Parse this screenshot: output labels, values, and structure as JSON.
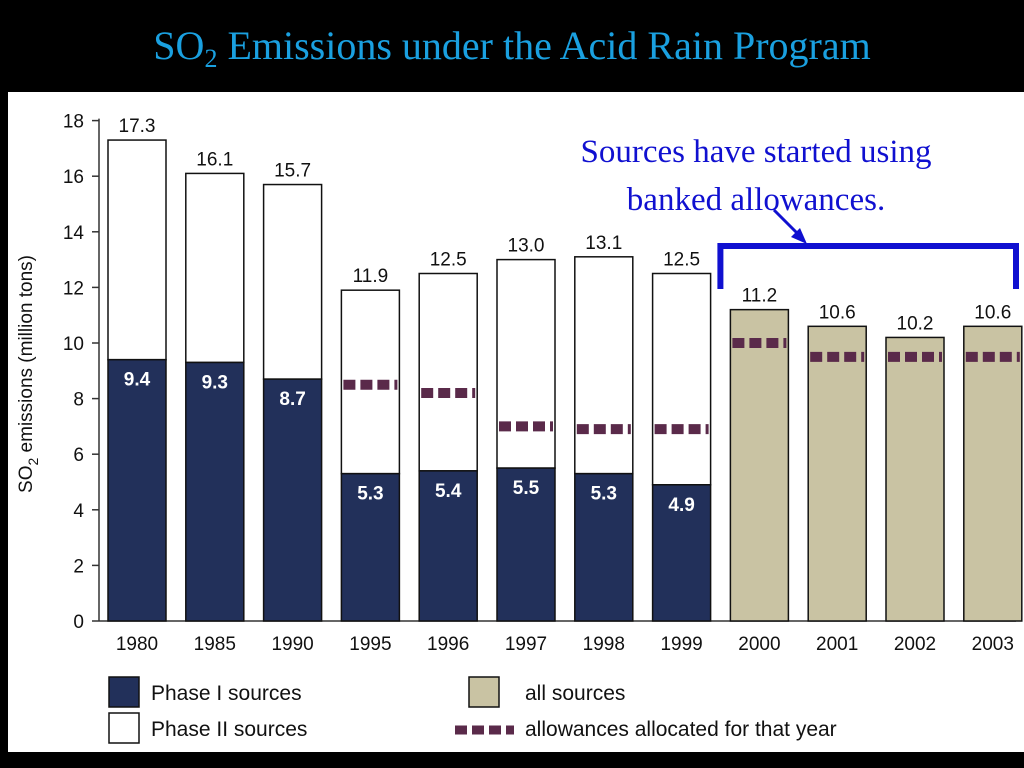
{
  "slide": {
    "title_main": "SO",
    "title_sub": "2",
    "title_rest": " Emissions under the Acid Rain Program"
  },
  "chart_data": {
    "type": "bar",
    "title": "SO2 Emissions under the Acid Rain Program",
    "ylabel_main": "SO",
    "ylabel_sub": "2",
    "ylabel_rest": " emissions (million tons)",
    "ylim": [
      0,
      18
    ],
    "yticks": [
      0,
      2,
      4,
      6,
      8,
      10,
      12,
      14,
      16,
      18
    ],
    "categories": [
      "1980",
      "1985",
      "1990",
      "1995",
      "1996",
      "1997",
      "1998",
      "1999",
      "2000",
      "2001",
      "2002",
      "2003"
    ],
    "totals": [
      17.3,
      16.1,
      15.7,
      11.9,
      12.5,
      13.0,
      13.1,
      12.5,
      11.2,
      10.6,
      10.2,
      10.6
    ],
    "total_labels": [
      "17.3",
      "16.1",
      "15.7",
      "11.9",
      "12.5",
      "13.0",
      "13.1",
      "12.5",
      "11.2",
      "10.6",
      "10.2",
      "10.6"
    ],
    "series": [
      {
        "name": "Phase I sources",
        "color": "#22305a",
        "values": [
          9.4,
          9.3,
          8.7,
          5.3,
          5.4,
          5.5,
          5.3,
          4.9,
          null,
          null,
          null,
          null
        ],
        "labels": [
          "9.4",
          "9.3",
          "8.7",
          "5.3",
          "5.4",
          "5.5",
          "5.3",
          "4.9",
          "",
          "",
          "",
          ""
        ]
      },
      {
        "name": "Phase II sources",
        "color": "#ffffff",
        "values": [
          7.9,
          6.8,
          7.0,
          6.6,
          7.1,
          7.5,
          7.8,
          7.6,
          null,
          null,
          null,
          null
        ]
      },
      {
        "name": "all sources",
        "color": "#c9c3a3",
        "values": [
          null,
          null,
          null,
          null,
          null,
          null,
          null,
          null,
          11.2,
          10.6,
          10.2,
          10.6
        ]
      }
    ],
    "allowances": {
      "name": "allowances allocated for that year",
      "color": "#5a2a4a",
      "values": [
        null,
        null,
        null,
        8.5,
        8.2,
        7.0,
        6.9,
        6.9,
        10.0,
        9.5,
        9.5,
        9.5
      ]
    },
    "annotation": {
      "line1": "Sources have started using",
      "line2": "banked allowances.",
      "color": "#1010d0"
    },
    "legend": [
      {
        "label": "Phase I sources",
        "swatch": "#22305a"
      },
      {
        "label": "all sources",
        "swatch": "#c9c3a3"
      },
      {
        "label": "Phase II sources",
        "swatch": "#ffffff"
      },
      {
        "label": "allowances allocated for that year",
        "swatch": "#5a2a4a"
      }
    ],
    "grid": false,
    "legend_placement": "bottom"
  }
}
